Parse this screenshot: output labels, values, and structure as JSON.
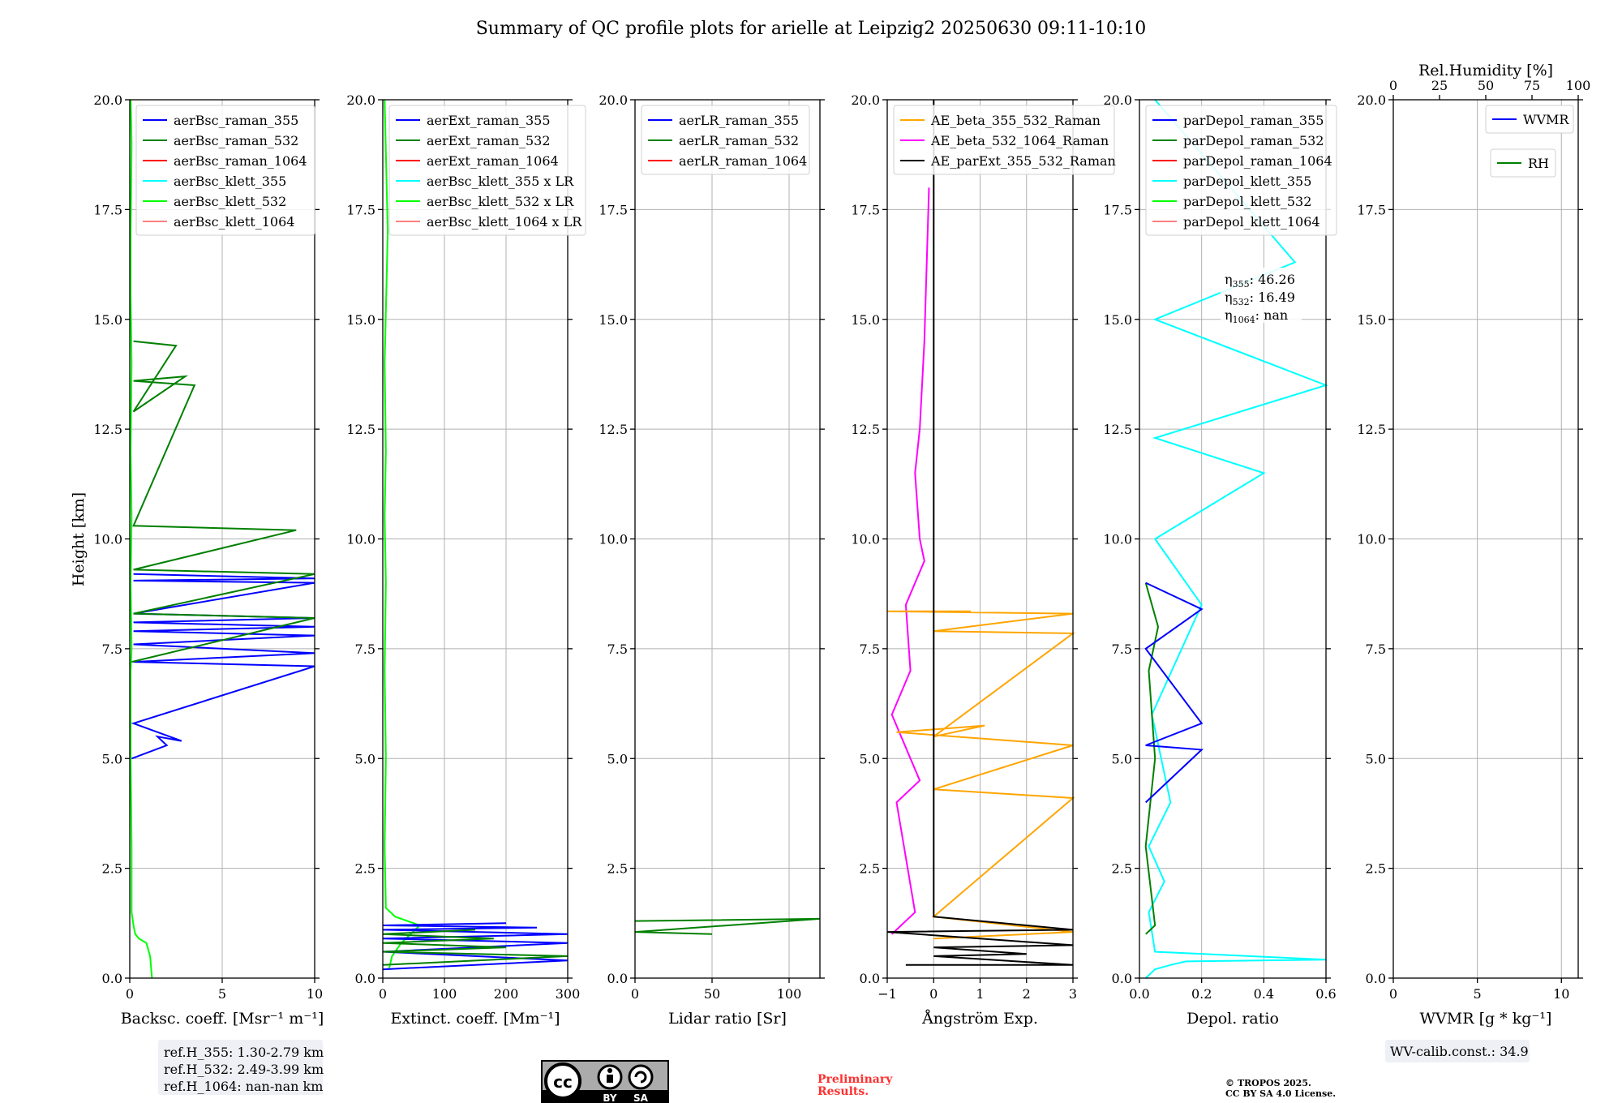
{
  "figure": {
    "title": "Summary of QC profile plots for arielle at Leipzig2 20250630 09:11-10:10",
    "ylabel": "Height [km]",
    "ref_heights": [
      "ref.H_355: 1.30-2.79 km",
      "ref.H_532: 2.49-3.99 km",
      "ref.H_1064: nan-nan km"
    ],
    "eta_labels": [
      {
        "sub": "355",
        "value": "46.26"
      },
      {
        "sub": "532",
        "value": "16.49"
      },
      {
        "sub": "1064",
        "value": "nan"
      }
    ],
    "wv_calib": "WV-calib.const.: 34.9",
    "preliminary": [
      "Preliminary",
      "Results."
    ],
    "copyright": [
      "© TROPOS 2025.",
      "CC BY SA 4.0 License."
    ],
    "cc_badge": {
      "by": "BY",
      "sa": "SA",
      "cc": "cc"
    }
  },
  "colors": {
    "blue": "#0000ff",
    "green": "#008000",
    "red": "#ff0000",
    "cyan": "#00ffff",
    "lime": "#00ff00",
    "salmon": "#ff8080",
    "orange": "#ffa500",
    "magenta": "#ff00ff",
    "black": "#000000"
  },
  "chart_data": [
    {
      "type": "line",
      "xlabel": "Backsc. coeff. [Msr⁻¹ m⁻¹]",
      "xlim": [
        0,
        10
      ],
      "xticks": [
        "0",
        "5",
        "10"
      ],
      "xtick_values": [
        0,
        5,
        10
      ],
      "ylim": [
        0,
        20
      ],
      "yticks": [
        "0.0",
        "2.5",
        "5.0",
        "7.5",
        "10.0",
        "12.5",
        "15.0",
        "17.5",
        "20.0"
      ],
      "legend": [
        "aerBsc_raman_355",
        "aerBsc_raman_532",
        "aerBsc_raman_1064",
        "aerBsc_klett_355",
        "aerBsc_klett_532",
        "aerBsc_klett_1064"
      ],
      "legend_colors": [
        "blue",
        "green",
        "red",
        "cyan",
        "lime",
        "salmon"
      ],
      "series": [
        {
          "name": "aerBsc_klett_532",
          "color": "lime",
          "x": [
            1.2,
            1.1,
            0.9,
            0.5,
            0.3,
            0.2,
            0.1,
            0.1,
            0.05,
            0.05,
            0.1,
            0.05,
            0.1,
            0.05,
            0.1,
            0.05,
            0.05,
            0.1,
            0.05
          ],
          "y": [
            0.0,
            0.5,
            0.8,
            0.9,
            1.0,
            1.2,
            1.5,
            3.0,
            5.0,
            7.0,
            7.5,
            9.0,
            10.5,
            12.0,
            14.0,
            15.5,
            17.0,
            19.0,
            20.0
          ]
        },
        {
          "name": "aerBsc_raman_355",
          "color": "blue",
          "x": [
            0.1,
            2.0,
            1.5,
            2.8,
            0.2,
            10,
            0.2,
            10,
            0.2,
            10,
            0.2,
            10,
            0.2,
            10,
            0.2,
            10,
            0.2,
            10,
            0.2
          ],
          "y": [
            5.0,
            5.3,
            5.5,
            5.4,
            5.8,
            7.1,
            7.2,
            7.4,
            7.6,
            7.8,
            7.9,
            8.0,
            8.1,
            8.2,
            8.3,
            9.0,
            9.05,
            9.1,
            9.2
          ]
        },
        {
          "name": "aerBsc_raman_532",
          "color": "green",
          "x": [
            0.1,
            10,
            0.2,
            10,
            0.2,
            9,
            0.2,
            3.5,
            0.2,
            3.0,
            0.2,
            2.5,
            0.2
          ],
          "y": [
            7.2,
            8.2,
            8.3,
            9.2,
            9.3,
            10.2,
            10.3,
            13.5,
            13.6,
            13.7,
            12.9,
            14.4,
            14.5
          ]
        }
      ]
    },
    {
      "type": "line",
      "xlabel": "Extinct. coeff. [Mm⁻¹]",
      "xlim": [
        0,
        300
      ],
      "xticks": [
        "0",
        "100",
        "200",
        "300"
      ],
      "xtick_values": [
        0,
        100,
        200,
        300
      ],
      "ylim": [
        0,
        20
      ],
      "yticks": [
        "0.0",
        "2.5",
        "5.0",
        "7.5",
        "10.0",
        "12.5",
        "15.0",
        "17.5",
        "20.0"
      ],
      "legend": [
        "aerExt_raman_355",
        "aerExt_raman_532",
        "aerExt_raman_1064",
        "aerBsc_klett_355 x LR",
        "aerBsc_klett_532 x LR",
        "aerBsc_klett_1064 x LR"
      ],
      "legend_colors": [
        "blue",
        "green",
        "red",
        "cyan",
        "lime",
        "salmon"
      ],
      "series": [
        {
          "name": "aerBsc_klett_532 x LR",
          "color": "lime",
          "x": [
            10,
            15,
            30,
            60,
            20,
            5,
            3,
            5,
            3,
            5,
            3,
            5,
            3,
            8,
            3
          ],
          "y": [
            0.2,
            0.5,
            0.8,
            1.2,
            1.4,
            1.6,
            3.0,
            5.0,
            7.0,
            9.0,
            10.5,
            12.0,
            14.0,
            17.0,
            20.0
          ]
        },
        {
          "name": "aerExt_raman_355",
          "color": "blue",
          "x": [
            0,
            300,
            0,
            300,
            0,
            300,
            0,
            250,
            0,
            200
          ],
          "y": [
            0.2,
            0.4,
            0.6,
            0.8,
            0.9,
            1.0,
            1.1,
            1.15,
            1.2,
            1.25
          ]
        },
        {
          "name": "aerExt_raman_532",
          "color": "green",
          "x": [
            0,
            300,
            0,
            200,
            0,
            180,
            0,
            150
          ],
          "y": [
            0.3,
            0.5,
            0.6,
            0.7,
            0.8,
            0.9,
            1.0,
            1.1
          ]
        }
      ]
    },
    {
      "type": "line",
      "xlabel": "Lidar ratio [Sr]",
      "xlim": [
        0,
        120
      ],
      "xticks": [
        "0",
        "50",
        "100"
      ],
      "xtick_values": [
        0,
        50,
        100
      ],
      "ylim": [
        0,
        20
      ],
      "yticks": [
        "0.0",
        "2.5",
        "5.0",
        "7.5",
        "10.0",
        "12.5",
        "15.0",
        "17.5",
        "20.0"
      ],
      "legend": [
        "aerLR_raman_355",
        "aerLR_raman_532",
        "aerLR_raman_1064"
      ],
      "legend_colors": [
        "blue",
        "green",
        "red"
      ],
      "series": [
        {
          "name": "aerLR_raman_532",
          "color": "green",
          "x": [
            0,
            120,
            0,
            50
          ],
          "y": [
            1.3,
            1.35,
            1.05,
            1.0
          ]
        }
      ]
    },
    {
      "type": "line",
      "xlabel": "Ångström Exp.",
      "xlim": [
        -1,
        3
      ],
      "xticks": [
        "−1",
        "0",
        "1",
        "2",
        "3"
      ],
      "xtick_values": [
        -1,
        0,
        1,
        2,
        3
      ],
      "ylim": [
        0,
        20
      ],
      "yticks": [
        "0.0",
        "2.5",
        "5.0",
        "7.5",
        "10.0",
        "12.5",
        "15.0",
        "17.5",
        "20.0"
      ],
      "legend": [
        "AE_beta_355_532_Raman",
        "AE_beta_532_1064_Raman",
        "AE_parExt_355_532_Raman"
      ],
      "legend_colors": [
        "orange",
        "magenta",
        "black"
      ],
      "series": [
        {
          "name": "AE_beta_532_1064_Raman",
          "color": "magenta",
          "x": [
            -0.9,
            -0.4,
            -0.8,
            -0.3,
            -0.9,
            -0.5,
            -0.6,
            -0.2,
            -0.3,
            -0.4,
            -0.3,
            -0.2,
            -0.1
          ],
          "y": [
            1.0,
            1.5,
            4.0,
            4.5,
            6.0,
            7.0,
            8.5,
            9.5,
            10.0,
            11.5,
            12.5,
            14.5,
            18.0
          ]
        },
        {
          "name": "AE_beta_355_532_Raman",
          "color": "orange",
          "x": [
            0,
            3,
            0,
            3,
            0,
            3,
            -0.8,
            1.1,
            0,
            3,
            0,
            3,
            -1,
            0.8
          ],
          "y": [
            0.9,
            1.05,
            1.4,
            4.1,
            4.3,
            5.3,
            5.6,
            5.75,
            5.5,
            7.85,
            7.9,
            8.3,
            8.35,
            8.35
          ]
        },
        {
          "name": "AE_parExt_355_532_Raman",
          "color": "black",
          "x": [
            -0.6,
            3,
            0,
            2,
            0,
            3,
            -1,
            3,
            0,
            0
          ],
          "y": [
            0.3,
            0.3,
            0.5,
            0.55,
            0.7,
            0.75,
            1.05,
            1.1,
            1.4,
            20
          ]
        }
      ]
    },
    {
      "type": "line",
      "xlabel": "Depol. ratio",
      "xlim": [
        0,
        0.6
      ],
      "xticks": [
        "0.0",
        "0.2",
        "0.4",
        "0.6"
      ],
      "xtick_values": [
        0,
        0.2,
        0.4,
        0.6
      ],
      "ylim": [
        0,
        20
      ],
      "yticks": [
        "0.0",
        "2.5",
        "5.0",
        "7.5",
        "10.0",
        "12.5",
        "15.0",
        "17.5",
        "20.0"
      ],
      "legend": [
        "parDepol_raman_355",
        "parDepol_raman_532",
        "parDepol_raman_1064",
        "parDepol_klett_355",
        "parDepol_klett_532",
        "parDepol_klett_1064"
      ],
      "legend_colors": [
        "blue",
        "green",
        "red",
        "cyan",
        "lime",
        "salmon"
      ],
      "series": [
        {
          "name": "parDepol_klett_355",
          "color": "cyan",
          "x": [
            0.02,
            0.05,
            0.1,
            0.15,
            0.6,
            0.05,
            0.03,
            0.08,
            0.03,
            0.1,
            0.04,
            0.2,
            0.05,
            0.4,
            0.05,
            0.6,
            0.05,
            0.5,
            0.05
          ],
          "y": [
            0.0,
            0.2,
            0.3,
            0.38,
            0.42,
            0.6,
            1.5,
            2.2,
            3.0,
            4.0,
            6.0,
            8.5,
            10.0,
            11.5,
            12.3,
            13.5,
            15.0,
            16.3,
            20.0
          ]
        },
        {
          "name": "parDepol_raman_532",
          "color": "green",
          "x": [
            0.02,
            0.05,
            0.02,
            0.05,
            0.03,
            0.06,
            0.02
          ],
          "y": [
            1.0,
            1.2,
            3.0,
            5.0,
            7.0,
            8.0,
            9.0
          ]
        },
        {
          "name": "parDepol_raman_355",
          "color": "blue",
          "x": [
            0.02,
            0.2,
            0.02,
            0.2,
            0.02,
            0.2,
            0.02
          ],
          "y": [
            4.0,
            5.2,
            5.3,
            5.8,
            7.5,
            8.4,
            9.0
          ]
        }
      ]
    },
    {
      "type": "line",
      "xlabel": "WVMR [g * kg⁻¹]",
      "xlim": [
        0,
        11
      ],
      "xticks": [
        "0",
        "5",
        "10"
      ],
      "xtick_values": [
        0,
        5,
        10
      ],
      "top_xlabel": "Rel.Humidity [%]",
      "top_xlim": [
        0,
        100
      ],
      "top_xticks": [
        "0",
        "25",
        "50",
        "75",
        "100"
      ],
      "top_xtick_values": [
        0,
        25,
        50,
        75,
        100
      ],
      "ylim": [
        0,
        20
      ],
      "yticks": [
        "0.0",
        "2.5",
        "5.0",
        "7.5",
        "10.0",
        "12.5",
        "15.0",
        "17.5",
        "20.0"
      ],
      "legend": [
        "WVMR",
        "RH"
      ],
      "legend_colors": [
        "blue",
        "green"
      ],
      "series": []
    }
  ]
}
